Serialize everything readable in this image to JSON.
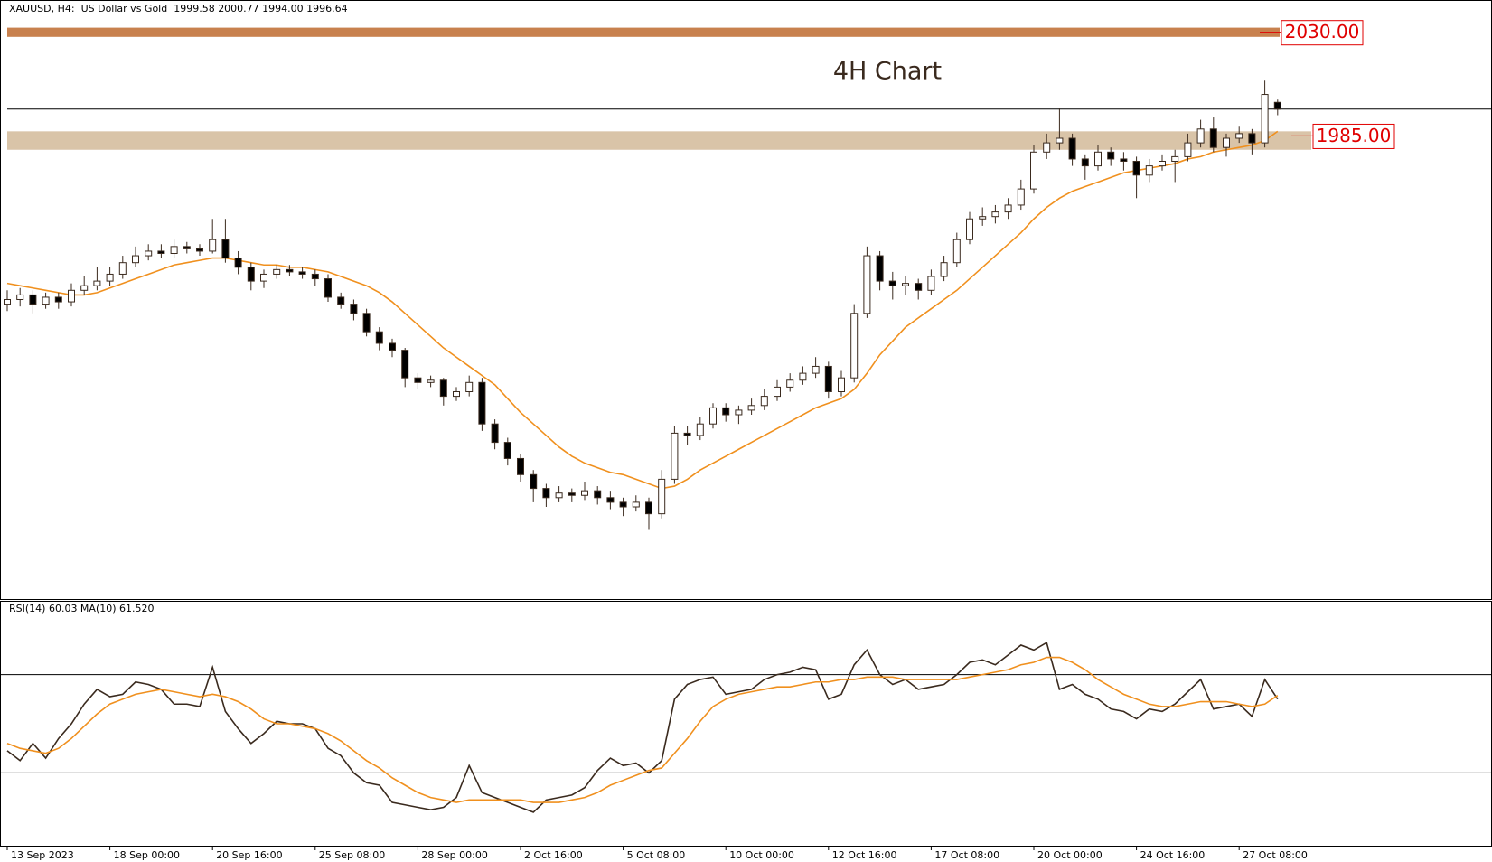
{
  "chart_data": [
    {
      "type": "candlestick",
      "title": "XAUUSD, H4:  US Dollar vs Gold  1999.58 2000.77 1994.00 1996.64",
      "annotation": "4H Chart",
      "ylim": [
        1784,
        2044
      ],
      "up_color": "#ffffff",
      "down_color": "#000000",
      "outline_color": "#3a2a1e",
      "zones": [
        {
          "label": "2030.00",
          "value": 2030,
          "from": 2028,
          "to": 2032,
          "color": "#c8814e"
        },
        {
          "label": "1985.00",
          "value": 1985,
          "from": 1979,
          "to": 1987,
          "color": "#d9c4a8"
        }
      ],
      "series": [
        {
          "color": "#f0901e",
          "values": [
            1921,
            1920,
            1919,
            1918,
            1917,
            1916,
            1916,
            1917,
            1919,
            1921,
            1923,
            1925,
            1927,
            1929,
            1930,
            1931,
            1932,
            1932,
            1931,
            1930,
            1929,
            1929,
            1928,
            1928,
            1927,
            1926,
            1924,
            1922,
            1920,
            1917,
            1913,
            1908,
            1903,
            1898,
            1893,
            1889,
            1885,
            1881,
            1877,
            1871,
            1865,
            1860,
            1855,
            1850,
            1846,
            1843,
            1841,
            1839,
            1838,
            1836,
            1834,
            1832,
            1833,
            1836,
            1840,
            1843,
            1846,
            1849,
            1852,
            1855,
            1858,
            1861,
            1864,
            1867,
            1869,
            1871,
            1875,
            1882,
            1890,
            1896,
            1902,
            1906,
            1910,
            1914,
            1918,
            1923,
            1928,
            1933,
            1938,
            1943,
            1949,
            1954,
            1958,
            1961,
            1963,
            1965,
            1967,
            1969,
            1970,
            1971,
            1972,
            1973,
            1975,
            1976,
            1978,
            1979,
            1980,
            1981,
            1983,
            1987
          ]
        }
      ],
      "candles": [
        [
          1912,
          1918,
          1909,
          1914
        ],
        [
          1914,
          1919,
          1911,
          1916
        ],
        [
          1916,
          1918,
          1908,
          1912
        ],
        [
          1912,
          1917,
          1910,
          1915
        ],
        [
          1915,
          1917,
          1910,
          1913
        ],
        [
          1913,
          1921,
          1911,
          1918
        ],
        [
          1918,
          1924,
          1916,
          1920
        ],
        [
          1920,
          1928,
          1918,
          1922
        ],
        [
          1922,
          1928,
          1920,
          1925
        ],
        [
          1925,
          1933,
          1923,
          1930
        ],
        [
          1930,
          1937,
          1928,
          1933
        ],
        [
          1933,
          1938,
          1931,
          1935
        ],
        [
          1935,
          1938,
          1932,
          1934
        ],
        [
          1934,
          1940,
          1932,
          1937
        ],
        [
          1937,
          1939,
          1934,
          1936
        ],
        [
          1936,
          1938,
          1933,
          1935
        ],
        [
          1935,
          1949,
          1934,
          1940
        ],
        [
          1940,
          1949,
          1930,
          1932
        ],
        [
          1932,
          1935,
          1925,
          1928
        ],
        [
          1928,
          1930,
          1918,
          1922
        ],
        [
          1922,
          1927,
          1919,
          1925
        ],
        [
          1925,
          1929,
          1923,
          1927
        ],
        [
          1927,
          1929,
          1924,
          1926
        ],
        [
          1926,
          1928,
          1923,
          1925
        ],
        [
          1925,
          1927,
          1920,
          1923
        ],
        [
          1923,
          1925,
          1913,
          1915
        ],
        [
          1915,
          1917,
          1910,
          1912
        ],
        [
          1912,
          1914,
          1905,
          1908
        ],
        [
          1908,
          1910,
          1898,
          1900
        ],
        [
          1900,
          1902,
          1892,
          1895
        ],
        [
          1895,
          1897,
          1889,
          1892
        ],
        [
          1892,
          1893,
          1876,
          1880
        ],
        [
          1880,
          1882,
          1875,
          1878
        ],
        [
          1878,
          1881,
          1876,
          1879
        ],
        [
          1879,
          1880,
          1868,
          1872
        ],
        [
          1872,
          1876,
          1870,
          1874
        ],
        [
          1874,
          1881,
          1872,
          1878
        ],
        [
          1878,
          1880,
          1857,
          1860
        ],
        [
          1860,
          1862,
          1849,
          1852
        ],
        [
          1852,
          1854,
          1842,
          1845
        ],
        [
          1845,
          1847,
          1835,
          1838
        ],
        [
          1838,
          1840,
          1826,
          1832
        ],
        [
          1832,
          1834,
          1824,
          1828
        ],
        [
          1828,
          1833,
          1826,
          1830
        ],
        [
          1830,
          1832,
          1826,
          1829
        ],
        [
          1829,
          1835,
          1827,
          1831
        ],
        [
          1831,
          1833,
          1825,
          1828
        ],
        [
          1828,
          1831,
          1823,
          1826
        ],
        [
          1826,
          1828,
          1820,
          1824
        ],
        [
          1824,
          1829,
          1822,
          1826
        ],
        [
          1826,
          1828,
          1814,
          1821
        ],
        [
          1821,
          1840,
          1819,
          1836
        ],
        [
          1836,
          1859,
          1834,
          1856
        ],
        [
          1856,
          1859,
          1851,
          1855
        ],
        [
          1855,
          1863,
          1853,
          1860
        ],
        [
          1860,
          1869,
          1858,
          1867
        ],
        [
          1867,
          1869,
          1861,
          1864
        ],
        [
          1864,
          1868,
          1860,
          1866
        ],
        [
          1866,
          1871,
          1864,
          1868
        ],
        [
          1868,
          1875,
          1866,
          1872
        ],
        [
          1872,
          1879,
          1870,
          1876
        ],
        [
          1876,
          1882,
          1874,
          1879
        ],
        [
          1879,
          1885,
          1877,
          1882
        ],
        [
          1882,
          1889,
          1880,
          1885
        ],
        [
          1885,
          1887,
          1871,
          1874
        ],
        [
          1874,
          1883,
          1872,
          1880
        ],
        [
          1880,
          1912,
          1878,
          1908
        ],
        [
          1908,
          1937,
          1906,
          1933
        ],
        [
          1933,
          1935,
          1918,
          1922
        ],
        [
          1922,
          1926,
          1914,
          1920
        ],
        [
          1920,
          1924,
          1916,
          1921
        ],
        [
          1921,
          1923,
          1914,
          1918
        ],
        [
          1918,
          1927,
          1916,
          1924
        ],
        [
          1924,
          1933,
          1922,
          1930
        ],
        [
          1930,
          1943,
          1928,
          1940
        ],
        [
          1940,
          1952,
          1938,
          1949
        ],
        [
          1949,
          1954,
          1946,
          1950
        ],
        [
          1950,
          1955,
          1947,
          1952
        ],
        [
          1952,
          1958,
          1949,
          1955
        ],
        [
          1955,
          1966,
          1953,
          1962
        ],
        [
          1962,
          1981,
          1960,
          1978
        ],
        [
          1978,
          1986,
          1975,
          1982
        ],
        [
          1982,
          1997,
          1979,
          1984
        ],
        [
          1984,
          1986,
          1972,
          1975
        ],
        [
          1975,
          1977,
          1966,
          1972
        ],
        [
          1972,
          1981,
          1970,
          1978
        ],
        [
          1978,
          1980,
          1972,
          1975
        ],
        [
          1975,
          1978,
          1970,
          1974
        ],
        [
          1974,
          1976,
          1958,
          1968
        ],
        [
          1968,
          1975,
          1965,
          1972
        ],
        [
          1972,
          1977,
          1970,
          1974
        ],
        [
          1974,
          1979,
          1965,
          1976
        ],
        [
          1976,
          1986,
          1974,
          1982
        ],
        [
          1982,
          1992,
          1980,
          1988
        ],
        [
          1988,
          1993,
          1978,
          1980
        ],
        [
          1980,
          1986,
          1976,
          1984
        ],
        [
          1984,
          1989,
          1982,
          1986
        ],
        [
          1986,
          1988,
          1977,
          1982
        ],
        [
          1982,
          2009,
          1980,
          2003
        ],
        [
          1999.58,
          2000.77,
          1994,
          1996.64
        ]
      ]
    },
    {
      "type": "line",
      "title": "RSI(14) 60.03 MA(10) 61.520",
      "ylim": [
        0,
        100
      ],
      "levels": [
        70,
        30
      ],
      "categories": [
        "13 Sep 2023",
        null,
        null,
        null,
        null,
        null,
        null,
        null,
        "18 Sep 00:00",
        null,
        null,
        null,
        null,
        null,
        null,
        null,
        "20 Sep 16:00",
        null,
        null,
        null,
        null,
        null,
        null,
        null,
        "25 Sep 08:00",
        null,
        null,
        null,
        null,
        null,
        null,
        null,
        "28 Sep 00:00",
        null,
        null,
        null,
        null,
        null,
        null,
        null,
        "2 Oct 16:00",
        null,
        null,
        null,
        null,
        null,
        null,
        null,
        "5 Oct 08:00",
        null,
        null,
        null,
        null,
        null,
        null,
        null,
        "10 Oct 00:00",
        null,
        null,
        null,
        null,
        null,
        null,
        null,
        "12 Oct 16:00",
        null,
        null,
        null,
        null,
        null,
        null,
        null,
        "17 Oct 08:00",
        null,
        null,
        null,
        null,
        null,
        null,
        null,
        "20 Oct 00:00",
        null,
        null,
        null,
        null,
        null,
        null,
        null,
        "24 Oct 16:00",
        null,
        null,
        null,
        null,
        null,
        null,
        null,
        "27 Oct 08:00",
        null,
        null,
        null
      ],
      "series": [
        {
          "color": "#3a2a1e",
          "values": [
            39,
            35,
            42,
            36,
            44,
            50,
            58,
            64,
            61,
            62,
            67,
            66,
            64,
            58,
            58,
            57,
            73,
            55,
            48,
            42,
            46,
            51,
            50,
            50,
            48,
            40,
            37,
            30,
            26,
            25,
            18,
            17,
            16,
            15,
            16,
            20,
            33,
            22,
            20,
            18,
            16,
            14,
            19,
            20,
            21,
            24,
            31,
            36,
            33,
            34,
            30,
            35,
            60,
            66,
            68,
            69,
            62,
            63,
            64,
            68,
            70,
            71,
            73,
            72,
            60,
            62,
            74,
            80,
            70,
            66,
            68,
            64,
            65,
            66,
            70,
            75,
            76,
            74,
            78,
            82,
            80,
            83,
            64,
            66,
            62,
            60,
            56,
            55,
            52,
            56,
            55,
            58,
            63,
            68,
            56,
            57,
            58,
            53,
            68,
            60.03
          ]
        },
        {
          "color": "#f0901e",
          "values": [
            42,
            40,
            39,
            38,
            40,
            44,
            49,
            54,
            58,
            60,
            62,
            63,
            64,
            63,
            62,
            61,
            62,
            61,
            59,
            56,
            52,
            50,
            50,
            49,
            48,
            46,
            43,
            39,
            35,
            32,
            28,
            25,
            22,
            20,
            19,
            18,
            19,
            19,
            19,
            19,
            19,
            18,
            18,
            18,
            19,
            20,
            22,
            25,
            27,
            29,
            31,
            32,
            38,
            44,
            51,
            57,
            60,
            62,
            63,
            64,
            65,
            65,
            66,
            67,
            67,
            68,
            68,
            69,
            69,
            69,
            68,
            68,
            68,
            68,
            68,
            69,
            70,
            71,
            72,
            74,
            75,
            77,
            77,
            75,
            72,
            68,
            65,
            62,
            60,
            58,
            57,
            57,
            58,
            59,
            59,
            59,
            58,
            57,
            58,
            61.52
          ]
        }
      ]
    }
  ]
}
